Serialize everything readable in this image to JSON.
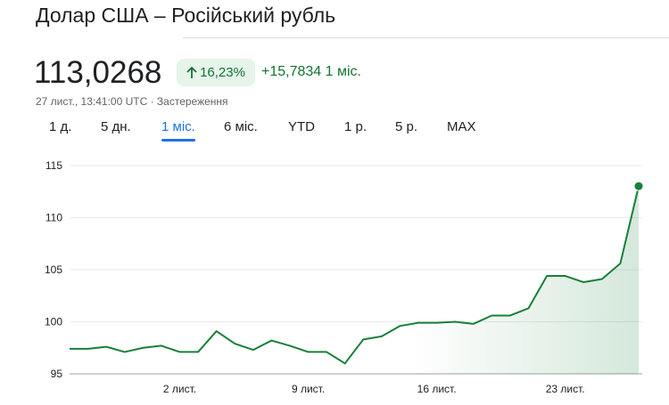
{
  "header": {
    "title": "Долар США – Російський рубль",
    "price": "113,0268",
    "change_percent": "16,23%",
    "change_value": "+15,7834",
    "change_period": "1 міс.",
    "timestamp": "27 лист., 13:41:00 UTC · Застереження"
  },
  "range_tabs": {
    "labels": [
      "1 д.",
      "5 дн.",
      "1 міс.",
      "6 міс.",
      "YTD",
      "1 р.",
      "5 р.",
      "MAX"
    ],
    "selected": 2
  },
  "chart_data": {
    "type": "line",
    "color": "#188038",
    "categories": [
      null,
      null,
      null,
      null,
      null,
      null,
      "2 лист.",
      null,
      null,
      null,
      null,
      null,
      null,
      "9 лист.",
      null,
      null,
      null,
      null,
      null,
      null,
      "16 лист.",
      null,
      null,
      null,
      null,
      null,
      null,
      "23 лист.",
      null,
      null,
      null,
      null
    ],
    "values": [
      97.4,
      97.4,
      97.6,
      97.1,
      97.5,
      97.7,
      97.1,
      97.1,
      99.1,
      97.9,
      97.3,
      98.2,
      97.7,
      97.1,
      97.1,
      96.0,
      98.3,
      98.6,
      99.6,
      99.9,
      99.9,
      100.0,
      99.8,
      100.6,
      100.6,
      101.3,
      104.4,
      104.4,
      103.8,
      104.1,
      105.6,
      113.0268
    ],
    "ylim": [
      95,
      115
    ],
    "yticks": [
      95,
      100,
      105,
      110,
      115
    ],
    "grid": true
  }
}
